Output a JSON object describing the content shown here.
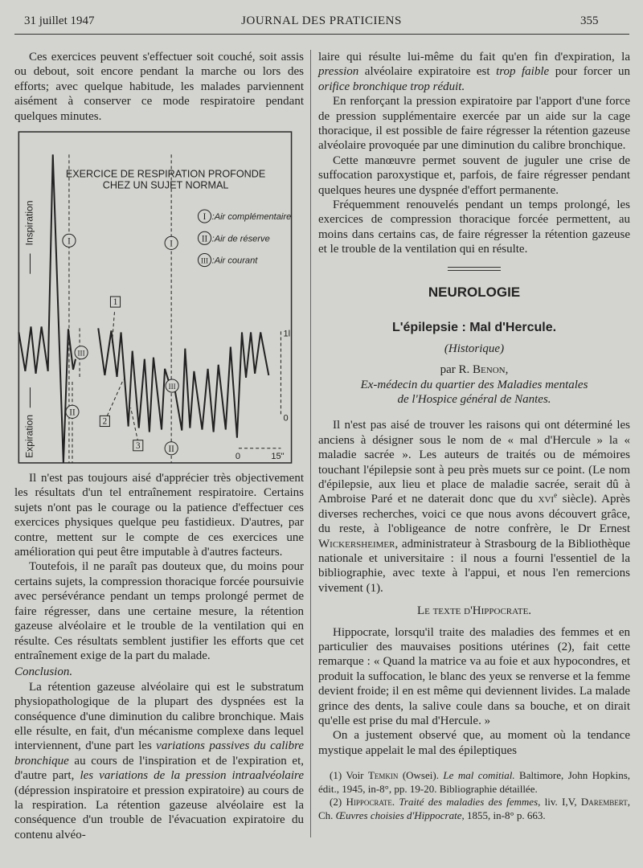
{
  "header": {
    "date": "31 juillet 1947",
    "journal": "JOURNAL DES PRATICIENS",
    "page": "355"
  },
  "left": {
    "p1": "Ces exercices peuvent s'effectuer soit couché, soit assis ou debout, soit encore pendant la marche ou lors des efforts; avec quelque habitude, les malades parviennent aisément à conserver ce mode respiratoire pendant quelques minutes.",
    "figure": {
      "title_1": "EXERCICE DE RESPIRATION PROFONDE",
      "title_2": "CHEZ UN SUJET NORMAL",
      "axis_inspiration": "Inspiration",
      "axis_expiration": "Expiration",
      "legend": [
        {
          "mark": "I",
          "label": ":Air complémentaire"
        },
        {
          "mark": "II",
          "label": ":Air de réserve"
        },
        {
          "mark": "III",
          "label": ":Air courant"
        }
      ],
      "box_labels": [
        "1",
        "2",
        "3"
      ],
      "scale_top": "1l",
      "scale_bottom": "0",
      "time_start": "0",
      "time_end": "15\""
    },
    "p2": "Il n'est pas toujours aisé d'apprécier très objectivement les résultats d'un tel entraînement respiratoire. Certains sujets n'ont pas le courage ou la patience d'effectuer ces exercices physiques quelque peu fastidieux. D'autres, par contre, mettent sur le compte de ces exercices une amélioration qui peut être imputable à d'autres facteurs.",
    "p3": "Toutefois, il ne paraît pas douteux que, du moins pour certains sujets, la compression thoracique forcée poursuivie avec persévérance pendant un temps prolongé permet de faire régresser, dans une certaine mesure, la rétention gazeuse alvéolaire et le trouble de la ventilation qui en résulte. Ces résultats semblent justifier les efforts que cet entraînement exige de la part du malade.",
    "conclusion_heading": "Conclusion.",
    "p4": [
      "La rétention gazeuse alvéolaire qui est le substratum physiopathologique de la plupart des dyspnées est la conséquence d'une diminution du calibre bronchique. Mais elle résulte, en fait, d'un mécanisme complexe dans lequel interviennent, d'une part les ",
      "variations passives du calibre bronchique",
      " au cours de l'inspiration et de l'expiration et, d'autre part, ",
      "les variations de la pression intraalvéolaire",
      " (dépression inspiratoire et pression expiratoire) au cours de la respiration. La rétention gazeuse alvéolaire est la conséquence d'un trouble de l'évacuation expiratoire du contenu alvéo-"
    ]
  },
  "right": {
    "r1": [
      "laire qui résulte lui-même du fait qu'en fin d'expiration, la ",
      "pression",
      " alvéolaire expiratoire est ",
      "trop faible",
      " pour forcer un ",
      "orifice bronchique trop réduit."
    ],
    "r2": "En renforçant la pression expiratoire par l'apport d'une force de pression supplémentaire exercée par un aide sur la cage thoracique, il est possible de faire régresser la rétention gazeuse alvéolaire provoquée par une diminution du calibre bronchique.",
    "r3": "Cette manœuvre permet souvent de juguler une crise de suffocation paroxystique et, parfois, de faire régresser pendant quelques heures une dyspnée d'effort permanente.",
    "r4": "Fréquemment renouvelés pendant un temps prolongé, les exercices de compression thoracique forcée permettent, au moins dans certains cas, de faire régresser la rétention gazeuse et le trouble de la ventilation qui en résulte.",
    "section": "NEUROLOGIE",
    "article_title": "L'épilepsie : Mal d'Hercule.",
    "subtitle": "(Historique)",
    "byline_par": "par R. ",
    "byline_name": "Benon,",
    "affiliation_1": "Ex-médecin du quartier des Maladies mentales",
    "affiliation_2": "de l'Hospice général de Nantes.",
    "r5": [
      "Il n'est pas aisé de trouver les raisons qui ont déterminé les anciens à désigner sous le nom de « mal d'Hercule » la « maladie sacrée ». Les auteurs de traités ou de mémoires touchant l'épilepsie sont à peu près muets sur ce point. (Le nom d'épilepsie, aux lieu et place de maladie sacrée, serait dû à Ambroise Paré et ne daterait donc que du ",
      "xvi",
      "e",
      " siècle). Après diverses recherches, voici ce que nous avons découvert grâce, du reste, à l'obligeance de notre confrère, le Dr Ernest ",
      "Wickersheimer",
      ", administrateur à Strasbourg de la Bibliothèque nationale et universitaire : il nous a fourni l'essentiel de la bibliographie, avec texte à l'appui, et nous l'en remercions vivement (1)."
    ],
    "subheading": "Le texte d'Hippocrate.",
    "r6": "Hippocrate, lorsqu'il traite des maladies des femmes et en particulier des mauvaises positions utérines (2), fait cette remarque : « Quand la matrice va au foie et aux hypocondres, et produit la suffocation, le blanc des yeux se renverse et la femme devient froide; il en est même qui deviennent livides. La malade grince des dents, la salive coule dans sa bouche, et on dirait qu'elle est prise du mal d'Hercule. »",
    "r7": "On a justement observé que, au moment où la tendance mystique appelait le mal des épileptiques",
    "footnotes": {
      "f1": [
        "(1) Voir ",
        "Temkin",
        " (Owsei). ",
        "Le mal comitial.",
        " Baltimore, John Hopkins, édit., 1945, in-8°, pp. 19-20. Bibliographie détaillée."
      ],
      "f2": [
        "(2) ",
        "Hippocrate",
        ". ",
        "Traité des maladies des femmes",
        ", liv. I,V, ",
        "Darembert",
        ", Ch. ",
        "Œuvres choisies d'Hippocrate",
        ", 1855, in-8° p. 663."
      ]
    }
  }
}
